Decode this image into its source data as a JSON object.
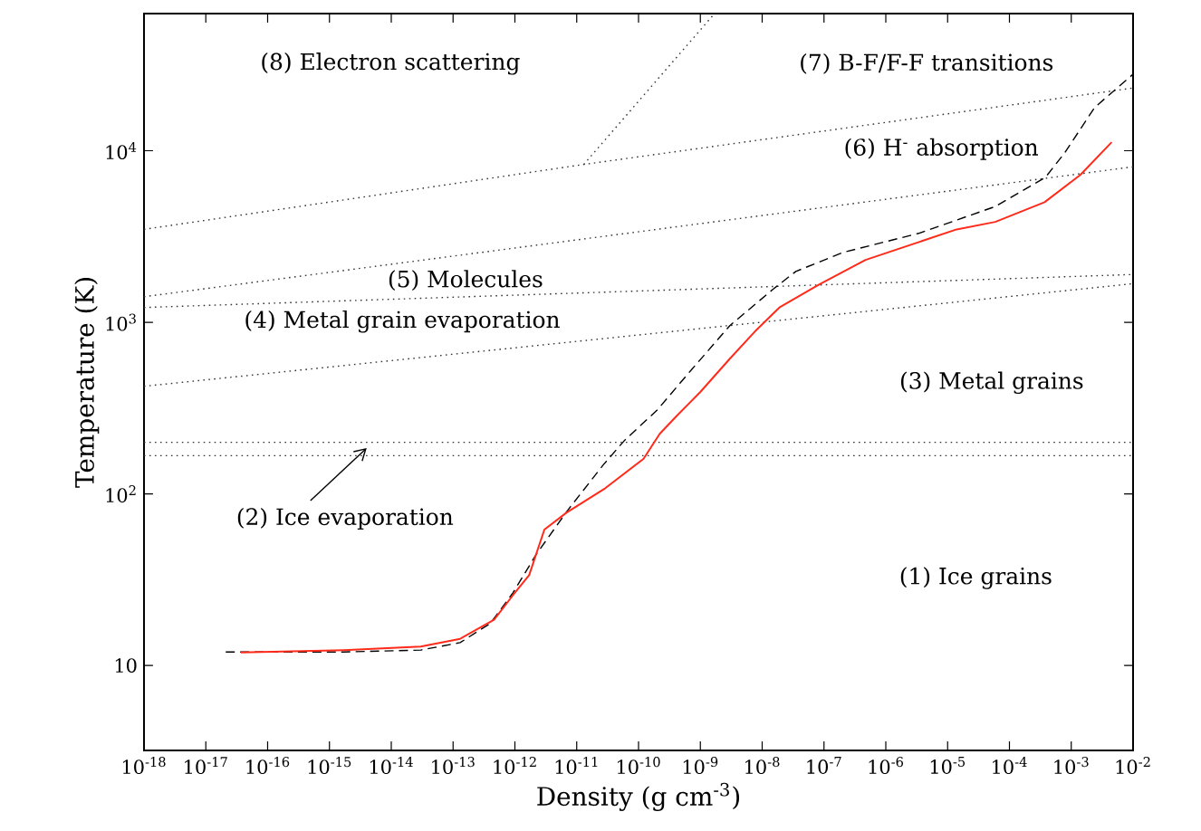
{
  "chart_data": {
    "type": "line",
    "xlabel": "Density (g cm$^{-3}$)",
    "ylabel": "Temperature (K)",
    "log": "xy",
    "xlim": [
      1e-18,
      0.01
    ],
    "ylim": [
      3.2,
      63000
    ],
    "xticks": [
      {
        "value": 1e-18,
        "label": "10$^{-18}$"
      },
      {
        "value": 1e-17,
        "label": "10$^{-17}$"
      },
      {
        "value": 1e-16,
        "label": "10$^{-16}$"
      },
      {
        "value": 1e-15,
        "label": "10$^{-15}$"
      },
      {
        "value": 1e-14,
        "label": "10$^{-14}$"
      },
      {
        "value": 1e-13,
        "label": "10$^{-13}$"
      },
      {
        "value": 1e-12,
        "label": "10$^{-12}$"
      },
      {
        "value": 1e-11,
        "label": "10$^{-11}$"
      },
      {
        "value": 1e-10,
        "label": "10$^{-10}$"
      },
      {
        "value": 1e-09,
        "label": "10$^{-9}$"
      },
      {
        "value": 1e-08,
        "label": "10$^{-8}$"
      },
      {
        "value": 1e-07,
        "label": "10$^{-7}$"
      },
      {
        "value": 1e-06,
        "label": "10$^{-6}$"
      },
      {
        "value": 1e-05,
        "label": "10$^{-5}$"
      },
      {
        "value": 0.0001,
        "label": "10$^{-4}$"
      },
      {
        "value": 0.001,
        "label": "10$^{-3}$"
      },
      {
        "value": 0.01,
        "label": "10$^{-2}$"
      }
    ],
    "yticks": [
      10,
      {
        "value": 100,
        "label": "10$^{2}$"
      },
      {
        "value": 1000,
        "label": "10$^{3}$"
      },
      {
        "value": 10000,
        "label": "10$^{4}$"
      }
    ],
    "marker": "none",
    "series": [
      {
        "color": "#333333",
        "line_style": "dotted",
        "x": [
          1e-18,
          1.3e-11,
          0.01
        ],
        "values": [
          3480,
          8320,
          23200
        ]
      },
      {
        "color": "#333333",
        "line_style": "dotted",
        "x": [
          1.3e-11,
          1.6e-09
        ],
        "values": [
          8320,
          61500
        ]
      },
      {
        "color": "#333333",
        "line_style": "dotted",
        "x": [
          1e-18,
          0.01
        ],
        "values": [
          1410,
          8060
        ]
      },
      {
        "color": "#333333",
        "line_style": "dotted",
        "x": [
          1e-18,
          0.01
        ],
        "values": [
          1220,
          1900
        ]
      },
      {
        "color": "#333333",
        "line_style": "dotted",
        "x": [
          1e-18,
          0.01
        ],
        "values": [
          424,
          1680
        ]
      },
      {
        "color": "#000000",
        "line_style": "dashed",
        "x": [
          2.1e-17,
          1.7e-15,
          3e-14,
          1.3e-13,
          4e-13,
          9.3e-13,
          2.2e-12,
          6.9e-12,
          2.7e-11,
          6e-11,
          2e-10,
          6.3e-10,
          3e-09,
          1.5e-08,
          3.5e-08,
          2e-07,
          3.4e-06,
          5.9e-05,
          0.00038,
          0.00078,
          0.0024,
          0.01
        ],
        "values": [
          12.0,
          12.0,
          12.3,
          13.6,
          17.6,
          26.5,
          44.3,
          79,
          148,
          206,
          308,
          501,
          957,
          1560,
          1980,
          2550,
          3300,
          4730,
          6980,
          9700,
          17900,
          27900
        ]
      },
      {
        "color": "#ff2a1a",
        "line_style": "solid",
        "x": [
          3.7e-17,
          1.7e-15,
          3e-14,
          1.3e-13,
          4.6e-13,
          9.3e-13,
          1.7e-12,
          3e-12,
          6.9e-12,
          2.9e-11,
          1.2e-10,
          2.2e-10,
          4.1e-10,
          1e-09,
          3e-09,
          7.6e-09,
          1.9e-08,
          8.3e-08,
          4.7e-07,
          1.4e-05,
          5.9e-05,
          0.00037,
          0.0014,
          0.0045
        ],
        "values": [
          11.9,
          12.3,
          12.9,
          14.3,
          18.5,
          25.7,
          33.6,
          62,
          78,
          108,
          160,
          224,
          284,
          393,
          614,
          883,
          1220,
          1660,
          2310,
          3480,
          3850,
          5010,
          7230,
          11200
        ]
      }
    ],
    "ref_lines": [
      {
        "axis": "y",
        "value": 200,
        "color": "#333333",
        "line_style": "dotted"
      },
      {
        "axis": "y",
        "value": 167,
        "color": "#333333",
        "line_style": "dotted"
      }
    ],
    "annotations": [
      "(8) Electron scattering",
      "(7) B-F/F-F transitions",
      "(6) H$^{-}$ absorption",
      "(5) Molecules",
      "(4) Metal grain evaporation",
      "(3) Metal grains",
      {
        "text": "(2) Ice evaporation",
        "x": 4e-15,
        "y": 185
      },
      "(1) Ice grains"
    ]
  }
}
